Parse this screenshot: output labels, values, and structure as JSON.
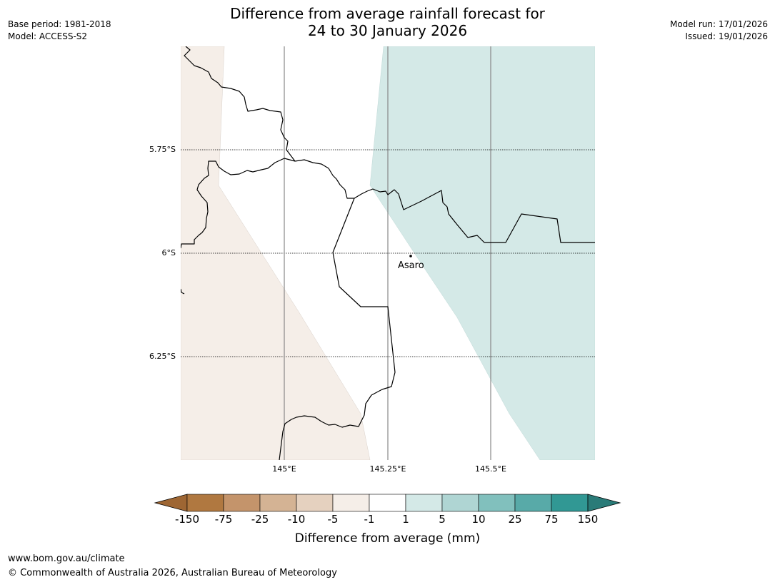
{
  "header": {
    "title_line1": "Difference from average rainfall forecast for",
    "title_line2": "24 to 30 January 2026",
    "base_period": "Base period: 1981-2018",
    "model": "Model: ACCESS-S2",
    "model_run": "Model run: 17/01/2026",
    "issued": "Issued: 19/01/2026"
  },
  "map": {
    "lat_labels": [
      "5.75°S",
      "6°S",
      "6.25°S"
    ],
    "lon_labels": [
      "145°E",
      "145.25°E",
      "145.5°E"
    ],
    "place": {
      "name": "Asaro"
    },
    "colors": {
      "dry_fill": "#f5eee8",
      "wet_fill": "#d4e9e7",
      "gridline": "#888888",
      "boundary": "#000000"
    }
  },
  "legend": {
    "title": "Difference from average (mm)",
    "labels": [
      "-150",
      "-75",
      "-25",
      "-10",
      "-5",
      "-1",
      "1",
      "5",
      "10",
      "25",
      "75",
      "150"
    ],
    "colors": [
      "#9e6633",
      "#b07840",
      "#c4946b",
      "#d4b394",
      "#e5d1bf",
      "#f5eee8",
      "#ffffff",
      "#d4e9e7",
      "#afd5d3",
      "#81c0bd",
      "#58aaa8",
      "#319894",
      "#2a7b78"
    ]
  },
  "footer": {
    "url": "www.bom.gov.au/climate",
    "copyright": "© Commonwealth of Australia 2026, Australian Bureau of Meteorology"
  }
}
